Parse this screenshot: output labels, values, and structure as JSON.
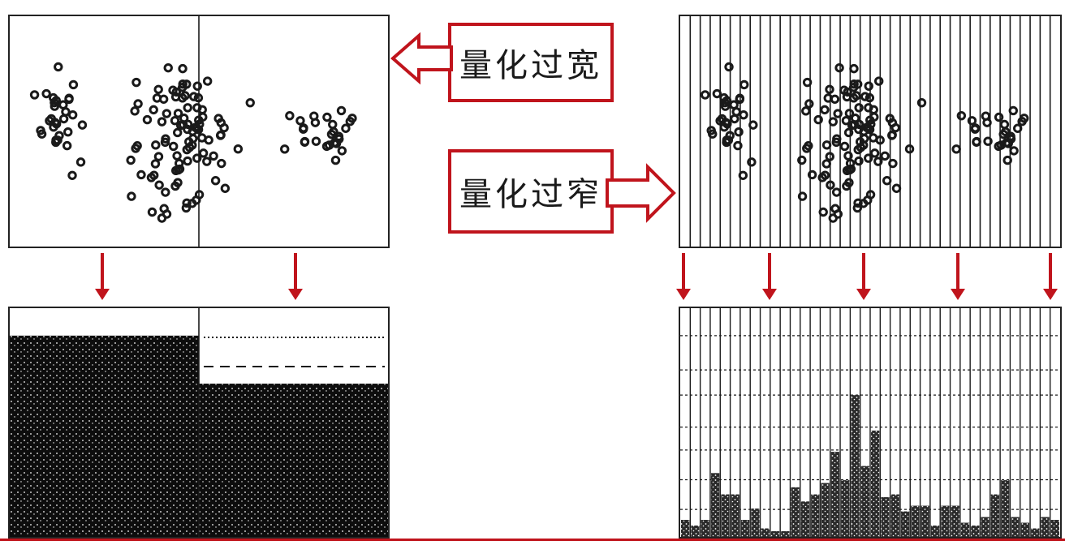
{
  "callouts": {
    "too_wide": "量化过宽",
    "too_narrow": "量化过窄"
  },
  "colors": {
    "accent": "#c0141c",
    "ink": "#1a1a1a"
  },
  "panels": {
    "wide_scatter": "scatter-with-two-bins",
    "narrow_scatter": "scatter-with-many-bins",
    "wide_histogram": "two-bin-histogram",
    "narrow_histogram": "many-bin-histogram"
  },
  "narrow_histogram_levels": [
    0.12,
    0.08,
    0.12,
    0.45,
    0.3,
    0.3,
    0.12,
    0.2,
    0.06,
    0.04,
    0.04,
    0.35,
    0.25,
    0.3,
    0.38,
    0.6,
    0.4,
    1.0,
    0.5,
    0.75,
    0.28,
    0.3,
    0.18,
    0.22,
    0.22,
    0.08,
    0.22,
    0.22,
    0.1,
    0.08,
    0.14,
    0.3,
    0.4,
    0.14,
    0.1,
    0.06,
    0.14,
    0.12
  ],
  "wide_histogram_levels": [
    0.88,
    0.67
  ]
}
